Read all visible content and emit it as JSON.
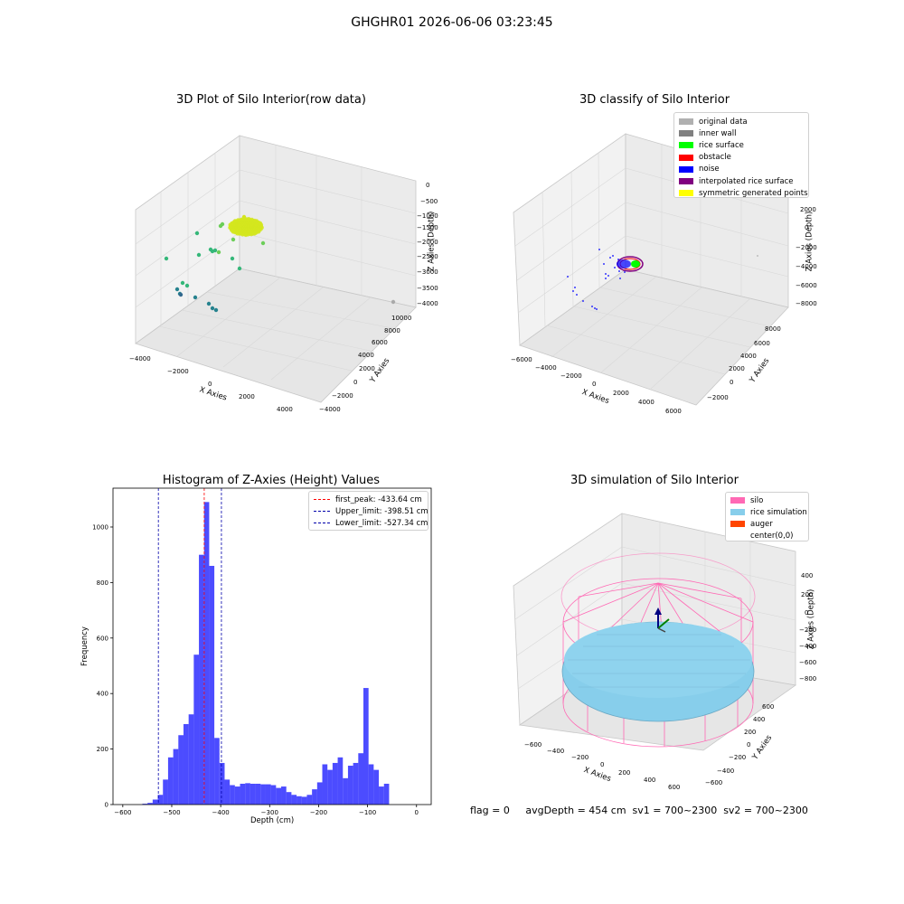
{
  "figure_title": "GHGHR01 2026-06-06 03:23:45",
  "status_line": "flag = 0     avgDepth = 454 cm  sv1 = 700~2300  sv2 = 700~2300",
  "chart_data": [
    {
      "id": "raw",
      "type": "scatter",
      "title": "3D Plot of Silo Interior(row data)",
      "xlabel": "X Axies",
      "ylabel": "Y Axies",
      "zlabel": "Z Axies (Depth)",
      "x_ticks": [
        "−4000",
        "−2000",
        "0",
        "2000",
        "4000"
      ],
      "y_ticks": [
        "−4000",
        "−2000",
        "0",
        "2000",
        "4000",
        "6000",
        "8000",
        "10000"
      ],
      "z_ticks": [
        "−4000",
        "−3500",
        "−3000",
        "−2500",
        "−2000",
        "−1500",
        "−1000",
        "−500",
        "0"
      ],
      "colors": {
        "cluster": "#d4e61f",
        "points_high": "#6cce59",
        "points_mid": "#35b779",
        "points_low": "#26828e",
        "points_deep": "#31688e"
      }
    },
    {
      "id": "classify",
      "type": "scatter",
      "title": "3D classify of Silo Interior",
      "xlabel": "X Axies",
      "ylabel": "Y Axies",
      "zlabel": "Z Axies (Depth)",
      "x_ticks": [
        "−6000",
        "−4000",
        "−2000",
        "0",
        "2000",
        "4000",
        "6000"
      ],
      "y_ticks": [
        "−2000",
        "0",
        "2000",
        "4000",
        "6000",
        "8000"
      ],
      "z_ticks": [
        "−8000",
        "−6000",
        "−4000",
        "−2000",
        "0",
        "2000"
      ],
      "legend": [
        {
          "label": "original data",
          "color": "#b0b0b0"
        },
        {
          "label": "inner wall",
          "color": "#808080"
        },
        {
          "label": "rice surface",
          "color": "#00ff00"
        },
        {
          "label": "obstacle",
          "color": "#ff0000"
        },
        {
          "label": "noise",
          "color": "#0000ff"
        },
        {
          "label": "interpolated rice surface",
          "color": "#800080"
        },
        {
          "label": "symmetric generated points",
          "color": "#ffff00"
        }
      ]
    },
    {
      "id": "hist",
      "type": "bar",
      "title": "Histogram of Z-Axies (Height) Values",
      "xlabel": "Depth (cm)",
      "ylabel": "Frequency",
      "xlim": [
        -620,
        30
      ],
      "ylim": [
        0,
        1140
      ],
      "x_ticks": [
        -600,
        -500,
        -400,
        -300,
        -200,
        -100,
        0
      ],
      "x_tick_labels": [
        "−600",
        "−500",
        "−400",
        "−300",
        "−200",
        "−100",
        "0"
      ],
      "y_ticks": [
        0,
        200,
        400,
        600,
        800,
        1000
      ],
      "bar_color": "#0000ff",
      "bin_start": -560,
      "bin_width": 10.5,
      "values": [
        3,
        6,
        18,
        35,
        90,
        170,
        200,
        250,
        290,
        325,
        540,
        900,
        1090,
        860,
        240,
        150,
        90,
        70,
        65,
        75,
        77,
        75,
        75,
        73,
        73,
        70,
        60,
        65,
        45,
        35,
        30,
        28,
        35,
        55,
        80,
        145,
        125,
        150,
        170,
        95,
        140,
        150,
        185,
        420,
        145,
        125,
        65,
        75
      ],
      "lines": [
        {
          "label": "first_peak: -433.64 cm",
          "x": -433.64,
          "color": "#ff0000"
        },
        {
          "label": "Upper_limit: -398.51 cm",
          "x": -398.51,
          "color": "#0000aa"
        },
        {
          "label": "Lower_limit: -527.34 cm",
          "x": -527.34,
          "color": "#0000aa"
        }
      ]
    },
    {
      "id": "sim",
      "type": "scatter",
      "title": "3D simulation of Silo Interior",
      "xlabel": "X Axies",
      "ylabel": "Y Axies",
      "zlabel": "Z Axies (Depth)",
      "x_ticks": [
        "−600",
        "−400",
        "−200",
        "0",
        "200",
        "400",
        "600"
      ],
      "y_ticks": [
        "−600",
        "−400",
        "−200",
        "0",
        "200",
        "400",
        "600"
      ],
      "z_ticks": [
        "−800",
        "−600",
        "−400",
        "−200",
        "0",
        "200",
        "400"
      ],
      "legend": [
        {
          "label": "silo",
          "color": "#ff69b4"
        },
        {
          "label": "rice simulation",
          "color": "#87ceeb"
        },
        {
          "label": "auger",
          "color": "#ff4500"
        },
        {
          "label": "center(0,0)",
          "color": ""
        }
      ]
    }
  ]
}
